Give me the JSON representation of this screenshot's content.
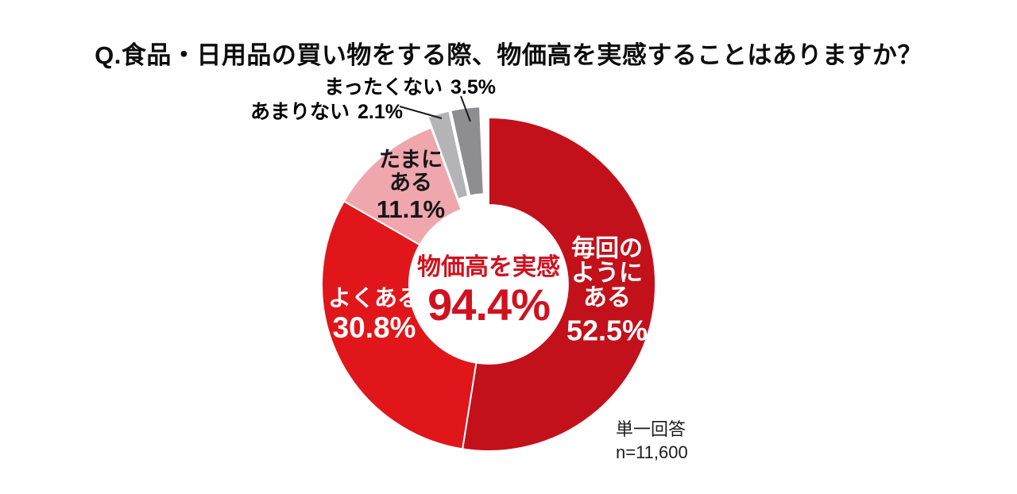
{
  "title": "Q.食品・日用品の買い物をする際、物価高を実感することはありますか？",
  "note": {
    "line1": "単一回答",
    "line2": "n=11,600"
  },
  "chart_data": {
    "type": "pie",
    "style": "donut",
    "title": "Q.食品・日用品の買い物をする際、物価高を実感することはありますか？",
    "start_angle_deg": 0,
    "direction": "clockwise",
    "center_label": "物価高を実感",
    "center_value": "94.4%",
    "center_value_numeric": 94.4,
    "sample_note": "単一回答 n=11,600",
    "n": 11600,
    "segments": [
      {
        "label": "毎回のようにある",
        "value": 52.5,
        "pct": "52.5%",
        "color": "#c2111b",
        "text_color": "#ffffff",
        "exploded": false
      },
      {
        "label": "よくある",
        "value": 30.8,
        "pct": "30.8%",
        "color": "#e1161b",
        "text_color": "#ffffff",
        "exploded": false
      },
      {
        "label": "たまにある",
        "value": 11.1,
        "pct": "11.1%",
        "color": "#efa6ad",
        "text_color": "#161616",
        "exploded": false
      },
      {
        "label": "あまりない",
        "value": 2.1,
        "pct": "2.1%",
        "color": "#b4b4b6",
        "text_color": "#000000",
        "exploded": true
      },
      {
        "label": "まったくない",
        "value": 3.5,
        "pct": "3.5%",
        "color": "#8e8e90",
        "text_color": "#000000",
        "exploded": true
      }
    ],
    "colors": {
      "accent_red": "#d0121f",
      "separator": "#ffffff"
    },
    "legend_position": "on-slices",
    "grid": false
  }
}
